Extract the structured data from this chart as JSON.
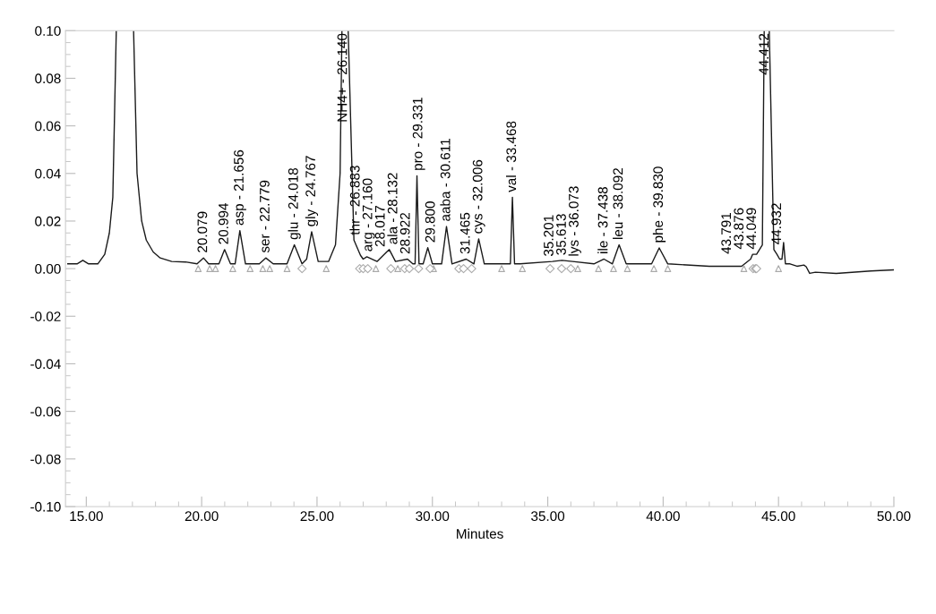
{
  "chart_data": {
    "type": "line",
    "xlabel": "Minutes",
    "xlim": [
      14.1,
      50.0
    ],
    "ylim": [
      -0.1,
      0.1
    ],
    "xticks": [
      {
        "value": 15,
        "label": "15.00"
      },
      {
        "value": 20,
        "label": "20.00"
      },
      {
        "value": 25,
        "label": "25.00"
      },
      {
        "value": 30,
        "label": "30.00"
      },
      {
        "value": 35,
        "label": "35.00"
      },
      {
        "value": 40,
        "label": "40.00"
      },
      {
        "value": 45,
        "label": "45.00"
      },
      {
        "value": 50,
        "label": "50.00"
      }
    ],
    "yticks": [
      {
        "value": -0.1,
        "label": "-0.10"
      },
      {
        "value": -0.08,
        "label": "-0.08"
      },
      {
        "value": -0.06,
        "label": "-0.06"
      },
      {
        "value": -0.04,
        "label": "-0.04"
      },
      {
        "value": -0.02,
        "label": "-0.02"
      },
      {
        "value": 0,
        "label": "0.00"
      },
      {
        "value": 0.02,
        "label": "0.02"
      },
      {
        "value": 0.04,
        "label": "0.04"
      },
      {
        "value": 0.06,
        "label": "0.06"
      },
      {
        "value": 0.08,
        "label": "0.08"
      },
      {
        "value": 0.1,
        "label": "0.10"
      }
    ],
    "grid": false,
    "legend": false,
    "series": [
      {
        "color": "#1a1a1a",
        "marker": "none",
        "line_style": "solid",
        "x": [
          14.2,
          14.6,
          14.85,
          15.1,
          15.5,
          15.8,
          16.0,
          16.15,
          16.3,
          16.6,
          17.05,
          17.2,
          17.4,
          17.6,
          17.9,
          18.2,
          18.7,
          19.3,
          19.8,
          20.079,
          20.3,
          20.75,
          20.994,
          21.25,
          21.45,
          21.656,
          21.9,
          22.5,
          22.779,
          23.1,
          23.7,
          24.018,
          24.35,
          24.55,
          24.767,
          25.05,
          25.5,
          25.8,
          26.0,
          26.08,
          26.2,
          26.35,
          26.6,
          26.883,
          27.0,
          27.16,
          27.6,
          28.017,
          28.132,
          28.4,
          28.922,
          29.15,
          29.25,
          29.331,
          29.42,
          29.6,
          29.8,
          30.0,
          30.4,
          30.611,
          30.85,
          31.465,
          31.8,
          32.006,
          32.25,
          33.2,
          33.38,
          33.468,
          33.56,
          33.8,
          35.201,
          35.613,
          36.073,
          37.0,
          37.438,
          37.8,
          38.092,
          38.4,
          39.5,
          39.83,
          40.2,
          42.0,
          43.4,
          43.791,
          43.876,
          44.049,
          44.3,
          44.38,
          44.5,
          44.6,
          44.8,
          44.932,
          45.05,
          45.15,
          45.22,
          45.3,
          45.5,
          45.8,
          46.1,
          46.2,
          46.35,
          46.6,
          47.5,
          49.0,
          50.0
        ],
        "values": [
          0.002,
          0.002,
          0.0035,
          0.002,
          0.002,
          0.006,
          0.015,
          0.03,
          0.1,
          null,
          0.1,
          0.04,
          0.02,
          0.012,
          0.007,
          0.0045,
          0.003,
          0.0028,
          0.002,
          0.0045,
          0.002,
          0.002,
          0.008,
          0.002,
          0.002,
          0.016,
          0.002,
          0.002,
          0.0045,
          0.002,
          0.002,
          0.01,
          0.002,
          0.004,
          0.0155,
          0.003,
          0.003,
          0.01,
          0.04,
          0.1,
          null,
          0.1,
          0.012,
          0.0056,
          0.004,
          0.005,
          0.003,
          0.007,
          0.008,
          0.003,
          0.004,
          0.002,
          0.002,
          0.039,
          0.002,
          0.002,
          0.0088,
          0.002,
          0.002,
          0.0177,
          0.002,
          0.004,
          0.002,
          0.0125,
          0.002,
          0.002,
          0.002,
          0.03,
          0.002,
          0.002,
          0.003,
          0.0035,
          0.003,
          0.002,
          0.004,
          0.002,
          0.01,
          0.002,
          0.002,
          0.0087,
          0.002,
          0.001,
          0.001,
          0.004,
          0.006,
          0.006,
          0.01,
          0.1,
          null,
          0.1,
          0.008,
          0.006,
          0.004,
          0.004,
          0.011,
          0.002,
          0.002,
          0.001,
          0.0015,
          0.0008,
          -0.002,
          -0.0015,
          -0.002,
          -0.001,
          -0.0005
        ]
      },
      {
        "type": "scatter",
        "color": "#aaaaaa",
        "marker": "triangle",
        "x": [
          19.85,
          20.35,
          20.6,
          21.35,
          22.1,
          22.65,
          22.95,
          23.7,
          25.4,
          27.55,
          28.5,
          30.05,
          33.0,
          33.9,
          36.3,
          37.2,
          37.85,
          38.45,
          39.6,
          40.2,
          43.5,
          45.0
        ],
        "values": [
          0,
          0,
          0,
          0,
          0,
          0,
          0,
          0,
          0,
          0,
          0,
          0,
          0,
          0,
          0,
          0,
          0,
          0,
          0,
          0,
          0,
          0
        ]
      },
      {
        "type": "scatter",
        "color": "#aaaaaa",
        "marker": "diamond",
        "x": [
          24.35,
          26.85,
          27.0,
          27.2,
          28.2,
          28.8,
          29.0,
          29.4,
          29.9,
          31.15,
          31.35,
          31.7,
          35.1,
          35.6,
          36.0,
          43.9,
          44.0,
          44.05
        ],
        "values": [
          0,
          0,
          0,
          0,
          0,
          0,
          0,
          0,
          0,
          0,
          0,
          0,
          0,
          0,
          0,
          0,
          0,
          0
        ]
      }
    ],
    "annotations": [
      {
        "text": "20.079",
        "x": 20.079,
        "y": 0.0045
      },
      {
        "text": "20.994",
        "x": 20.994,
        "y": 0.008
      },
      {
        "text": "asp - 21.656",
        "x": 21.656,
        "y": 0.016
      },
      {
        "text": "ser - 22.779",
        "x": 22.779,
        "y": 0.0045
      },
      {
        "text": "glu - 24.018",
        "x": 24.018,
        "y": 0.01
      },
      {
        "text": "gly - 24.767",
        "x": 24.767,
        "y": 0.0155
      },
      {
        "text": "NH4+ - 26.140",
        "x": 26.14,
        "y": 0.1
      },
      {
        "text": "thr - 26.883",
        "x": 26.883,
        "y": 0.0056
      },
      {
        "text": "arg - 27.160",
        "x": 27.16,
        "y": 0.005
      },
      {
        "text": "28.017",
        "x": 28.017,
        "y": 0.007
      },
      {
        "text": "ala - 28.132",
        "x": 28.132,
        "y": 0.008
      },
      {
        "text": "28.922",
        "x": 28.922,
        "y": 0.004
      },
      {
        "text": "pro - 29.331",
        "x": 29.331,
        "y": 0.039
      },
      {
        "text": "29.800",
        "x": 29.8,
        "y": 0.0088
      },
      {
        "text": "aaba - 30.611",
        "x": 30.611,
        "y": 0.0177
      },
      {
        "text": "31.465",
        "x": 31.465,
        "y": 0.004
      },
      {
        "text": "cys - 32.006",
        "x": 32.006,
        "y": 0.0125
      },
      {
        "text": "val - 33.468",
        "x": 33.468,
        "y": 0.03
      },
      {
        "text": "35.201",
        "x": 35.201,
        "y": 0.003
      },
      {
        "text": "35.613",
        "x": 35.613,
        "y": 0.0035
      },
      {
        "text": "lys - 36.073",
        "x": 36.073,
        "y": 0.003
      },
      {
        "text": "ile - 37.438",
        "x": 37.438,
        "y": 0.004
      },
      {
        "text": "leu - 38.092",
        "x": 38.092,
        "y": 0.01
      },
      {
        "text": "phe - 39.830",
        "x": 39.83,
        "y": 0.0087
      },
      {
        "text": "43.791",
        "x": 43.791,
        "y": 0.004
      },
      {
        "text": "43.876",
        "x": 43.876,
        "y": 0.006
      },
      {
        "text": "44.049",
        "x": 44.049,
        "y": 0.006
      },
      {
        "text": "44.412",
        "x": 44.412,
        "y": 0.1
      },
      {
        "text": "44.932",
        "x": 44.932,
        "y": 0.006
      }
    ]
  }
}
